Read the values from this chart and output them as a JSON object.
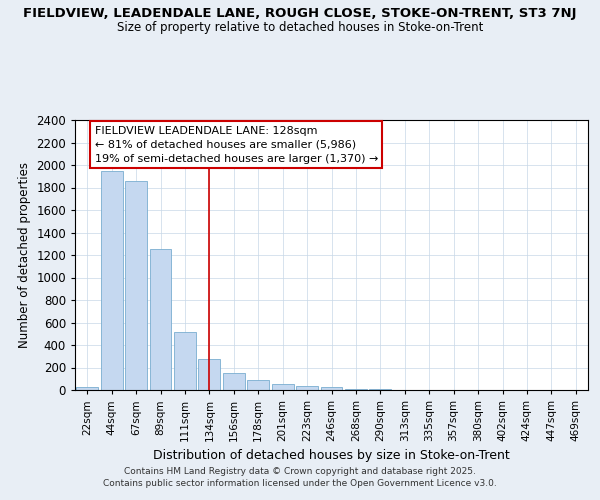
{
  "title_line1": "FIELDVIEW, LEADENDALE LANE, ROUGH CLOSE, STOKE-ON-TRENT, ST3 7NJ",
  "title_line2": "Size of property relative to detached houses in Stoke-on-Trent",
  "xlabel": "Distribution of detached houses by size in Stoke-on-Trent",
  "ylabel": "Number of detached properties",
  "annotation_title": "FIELDVIEW LEADENDALE LANE: 128sqm",
  "annotation_line1": "← 81% of detached houses are smaller (5,986)",
  "annotation_line2": "19% of semi-detached houses are larger (1,370) →",
  "footer_line1": "Contains HM Land Registry data © Crown copyright and database right 2025.",
  "footer_line2": "Contains public sector information licensed under the Open Government Licence v3.0.",
  "categories": [
    "22sqm",
    "44sqm",
    "67sqm",
    "89sqm",
    "111sqm",
    "134sqm",
    "156sqm",
    "178sqm",
    "201sqm",
    "223sqm",
    "246sqm",
    "268sqm",
    "290sqm",
    "313sqm",
    "335sqm",
    "357sqm",
    "380sqm",
    "402sqm",
    "424sqm",
    "447sqm",
    "469sqm"
  ],
  "values": [
    30,
    1950,
    1860,
    1250,
    520,
    275,
    155,
    90,
    50,
    35,
    30,
    10,
    5,
    3,
    2,
    1,
    1,
    1,
    0,
    0,
    0
  ],
  "vline_index": 5,
  "bar_color": "#c5d8f0",
  "bar_edge_color": "#7aaed0",
  "vertical_line_color": "#cc0000",
  "annotation_box_edge_color": "#cc0000",
  "ylim": [
    0,
    2400
  ],
  "yticks": [
    0,
    200,
    400,
    600,
    800,
    1000,
    1200,
    1400,
    1600,
    1800,
    2000,
    2200,
    2400
  ],
  "background_color": "#e8eef5",
  "plot_bg_color": "#ffffff",
  "grid_color": "#c8d8e8"
}
